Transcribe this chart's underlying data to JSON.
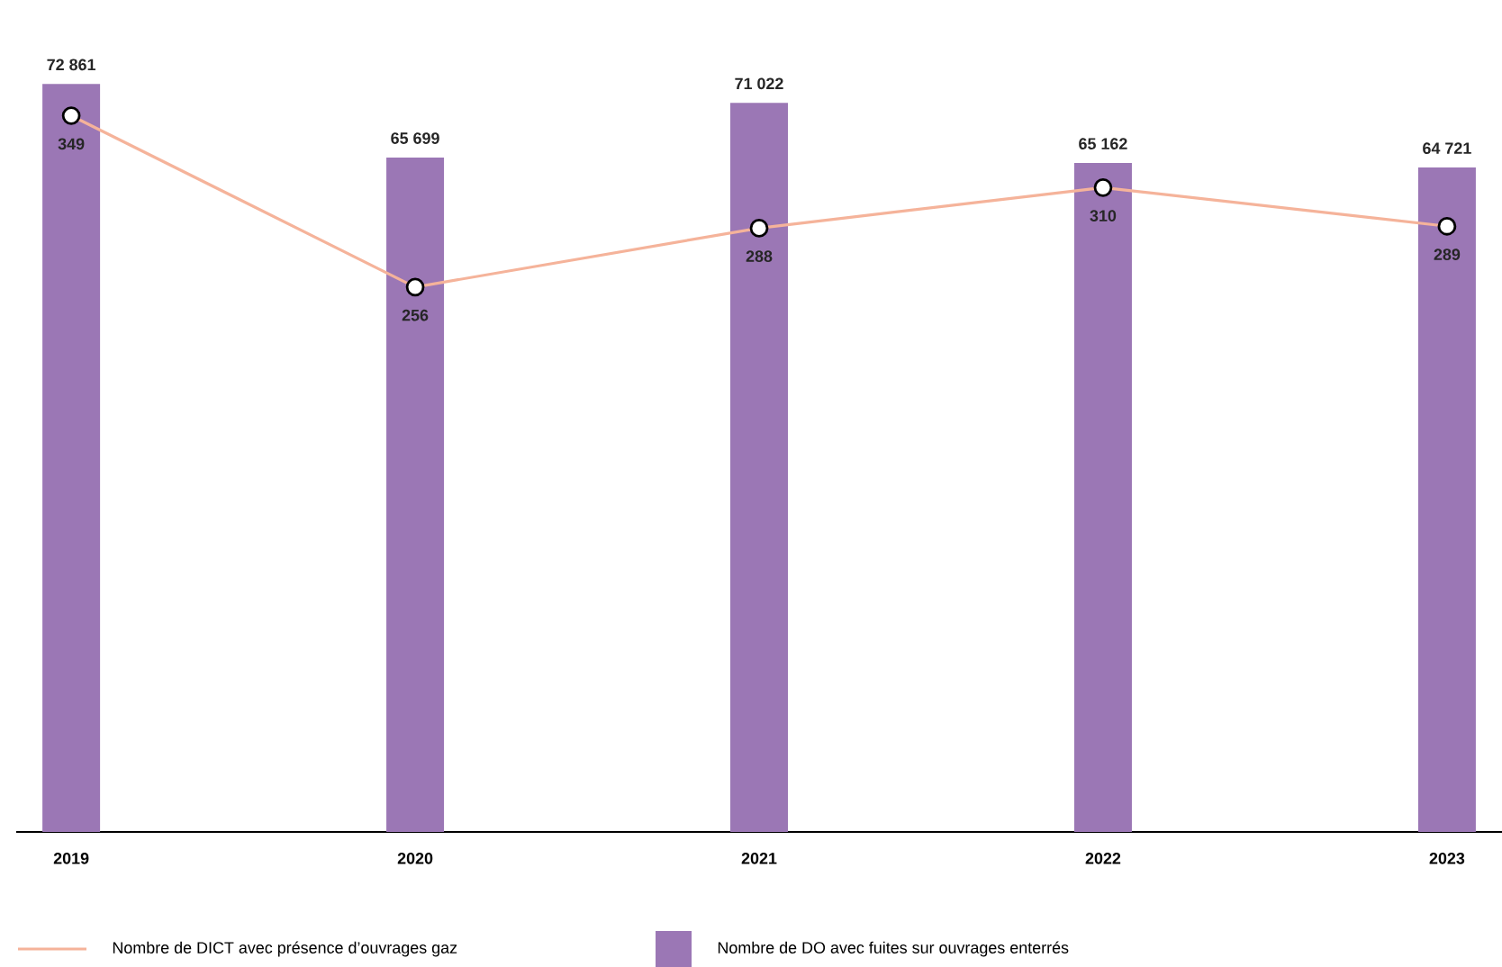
{
  "chart_data": {
    "type": "bar",
    "categories": [
      "2019",
      "2020",
      "2021",
      "2022",
      "2023"
    ],
    "series": [
      {
        "name": "Nombre de DICT avec présence d’ouvrages gaz",
        "type": "line",
        "axis": "y2",
        "color": "#f5b39a",
        "values": [
          349,
          256,
          288,
          310,
          289
        ],
        "value_labels": [
          "349",
          "256",
          "288",
          "310",
          "289"
        ]
      },
      {
        "name": "Nombre de DO avec fuites sur ouvrages enterrés",
        "color": "#9b77b5",
        "values": [
          72861,
          65699,
          71022,
          65162,
          64721
        ],
        "value_labels": [
          "72 861",
          "65 699",
          "71 022",
          "65 162",
          "64 721"
        ]
      }
    ],
    "marker": "circle",
    "legend": "bottom",
    "tick_labels": "x"
  }
}
